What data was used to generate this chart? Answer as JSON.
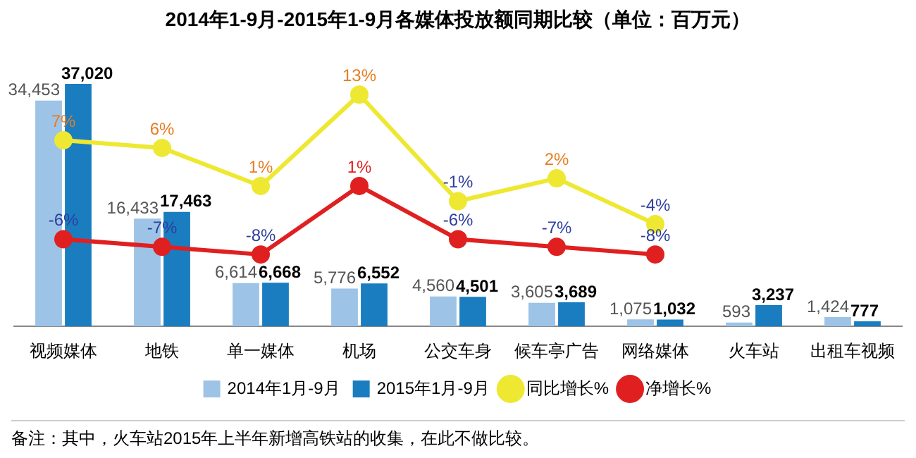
{
  "chart_data": {
    "type": "bar",
    "title": "2014年1-9月-2015年1-9月各媒体投放额同期比较（单位：百万元）",
    "categories": [
      "视频媒体",
      "地铁",
      "单一媒体",
      "机场",
      "公交车身",
      "候车亭广告",
      "网络媒体",
      "火车站",
      "出租车视频"
    ],
    "series": [
      {
        "name": "2014年1月-9月",
        "color": "#9dc3e6",
        "values": [
          34453,
          16433,
          6614,
          5776,
          4560,
          3605,
          1075,
          593,
          1424
        ],
        "value_labels": [
          "34,453",
          "16,433",
          "6,614",
          "5,776",
          "4,560",
          "3,605",
          "1,075",
          "593",
          "1,424"
        ]
      },
      {
        "name": "2015年1月-9月",
        "color": "#1a7dc0",
        "values": [
          37020,
          17463,
          6668,
          6552,
          4501,
          3689,
          1032,
          3237,
          777
        ],
        "value_labels": [
          "37,020",
          "17,463",
          "6,668",
          "6,552",
          "4,501",
          "3,689",
          "1,032",
          "3,237",
          "777"
        ]
      },
      {
        "name": "同比增长%",
        "type": "line",
        "axis": "y2",
        "color": "#eee832",
        "values": [
          7,
          6,
          1,
          13,
          -1,
          2,
          -4,
          null,
          null
        ],
        "value_labels": [
          "7%",
          "6%",
          "1%",
          "13%",
          "-1%",
          "2%",
          "-4%",
          null,
          null
        ]
      },
      {
        "name": "净增长%",
        "type": "line",
        "axis": "y2",
        "color": "#e02020",
        "values": [
          -6,
          -7,
          -8,
          1,
          -6,
          -7,
          -8,
          null,
          null
        ],
        "value_labels": [
          "-6%",
          "-7%",
          "-8%",
          "1%",
          "-6%",
          "-7%",
          "-8%",
          null,
          null
        ]
      }
    ],
    "marker": "circle",
    "legend": "bottom",
    "grid": false,
    "annotations": [
      "备注：其中，火车站2015年上半年新增高铁站的收集，在此不做比较。"
    ]
  }
}
